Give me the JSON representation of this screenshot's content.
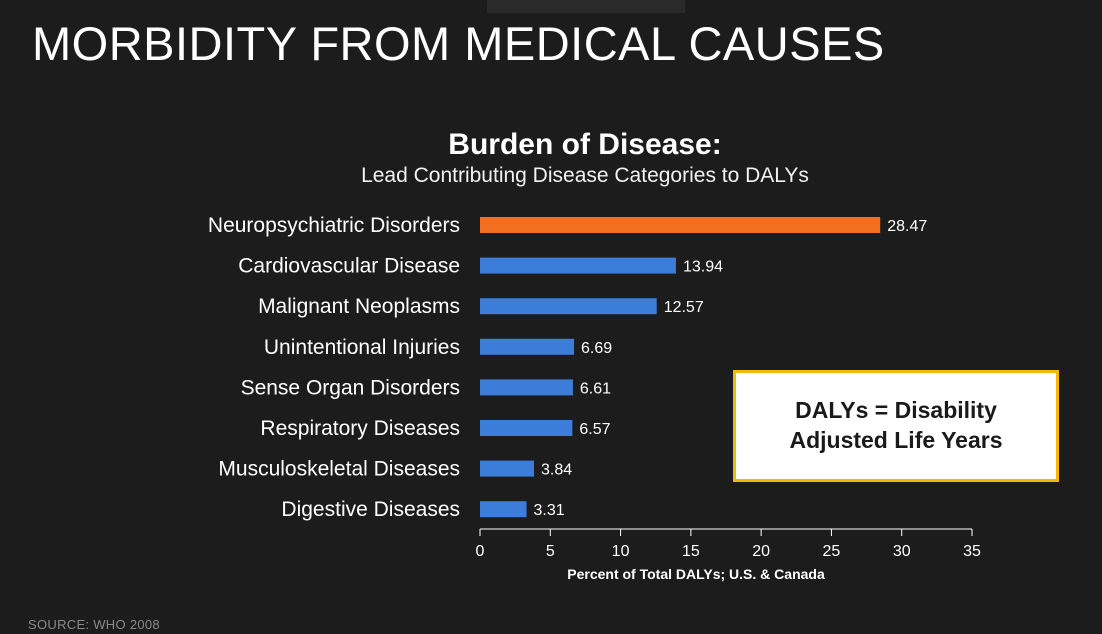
{
  "slide": {
    "title": "MORBIDITY FROM MEDICAL CAUSES",
    "source": "SOURCE: WHO 2008"
  },
  "callout": {
    "line1": "DALYs = Disability",
    "line2": "Adjusted Life Years",
    "border_color": "#f5b70a"
  },
  "chart_data": {
    "type": "bar",
    "orientation": "horizontal",
    "title": "Burden of Disease:",
    "subtitle": "Lead Contributing Disease Categories to DALYs",
    "xlabel": "Percent of Total DALYs; U.S. & Canada",
    "ylabel": "",
    "xlim": [
      0,
      35
    ],
    "xticks": [
      0,
      5,
      10,
      15,
      20,
      25,
      30,
      35
    ],
    "categories": [
      "Neuropsychiatric Disorders",
      "Cardiovascular Disease",
      "Malignant Neoplasms",
      "Unintentional Injuries",
      "Sense Organ Disorders",
      "Respiratory Diseases",
      "Musculoskeletal Diseases",
      "Digestive Diseases"
    ],
    "values": [
      28.47,
      13.94,
      12.57,
      6.69,
      6.61,
      6.57,
      3.84,
      3.31
    ],
    "value_labels": [
      "28.47",
      "13.94",
      "12.57",
      "6.69",
      "6.61",
      "6.57",
      "3.84",
      "3.31"
    ],
    "highlight_color": "#f26f21",
    "bar_color": "#3b7dd8"
  }
}
